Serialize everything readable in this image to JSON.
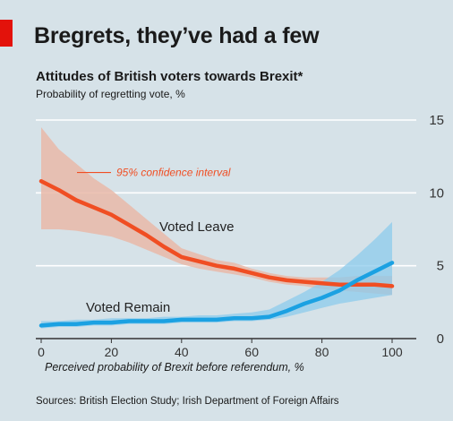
{
  "header": {
    "title": "Bregrets, they’ve had a few",
    "subtitle": "Attitudes of British voters towards Brexit*",
    "unit_label": "Probability of regretting vote, %"
  },
  "footer": {
    "source": "Sources: British Election Study; Irish Department of Foreign Affairs"
  },
  "colors": {
    "background": "#d6e2e8",
    "leave": "#f04e23",
    "leave_band": "#e9b8a8",
    "remain": "#1ba1e2",
    "remain_band": "#8ccbec",
    "tag": "#e3120b"
  },
  "chart_data": {
    "type": "line",
    "xlabel": "Perceived probability of Brexit before referendum, %",
    "ylabel": "",
    "xlim": [
      0,
      100
    ],
    "ylim": [
      0,
      15
    ],
    "x_ticks": [
      0,
      20,
      40,
      60,
      80,
      100
    ],
    "y_ticks": [
      0,
      5,
      10,
      15
    ],
    "y_axis_side": "right",
    "grid": true,
    "annotation": "95% confidence interval",
    "series": [
      {
        "name": "Voted Leave",
        "x": [
          0,
          5,
          10,
          15,
          20,
          25,
          30,
          35,
          40,
          45,
          50,
          55,
          60,
          65,
          70,
          75,
          80,
          85,
          90,
          95,
          100
        ],
        "values": [
          10.8,
          10.2,
          9.5,
          9.0,
          8.5,
          7.8,
          7.1,
          6.3,
          5.6,
          5.3,
          5.0,
          4.8,
          4.5,
          4.2,
          4.0,
          3.9,
          3.8,
          3.7,
          3.7,
          3.7,
          3.6
        ],
        "lower": [
          7.5,
          7.5,
          7.4,
          7.2,
          7.0,
          6.6,
          6.1,
          5.6,
          5.1,
          4.8,
          4.6,
          4.4,
          4.2,
          3.9,
          3.7,
          3.6,
          3.4,
          3.3,
          3.2,
          3.1,
          3.0
        ],
        "upper": [
          14.5,
          13.0,
          12.0,
          11.0,
          10.2,
          9.2,
          8.2,
          7.2,
          6.2,
          5.8,
          5.4,
          5.2,
          4.8,
          4.5,
          4.3,
          4.2,
          4.2,
          4.2,
          4.3,
          4.3,
          4.3
        ]
      },
      {
        "name": "Voted Remain",
        "x": [
          0,
          5,
          10,
          15,
          20,
          25,
          30,
          35,
          40,
          45,
          50,
          55,
          60,
          65,
          70,
          75,
          80,
          85,
          90,
          95,
          100
        ],
        "values": [
          0.9,
          1.0,
          1.0,
          1.1,
          1.1,
          1.2,
          1.2,
          1.2,
          1.3,
          1.3,
          1.3,
          1.4,
          1.4,
          1.5,
          1.9,
          2.4,
          2.8,
          3.3,
          4.0,
          4.6,
          5.2
        ],
        "lower": [
          0.7,
          0.8,
          0.8,
          0.9,
          0.9,
          1.0,
          1.0,
          1.0,
          1.1,
          1.1,
          1.1,
          1.2,
          1.2,
          1.3,
          1.5,
          1.8,
          2.1,
          2.4,
          2.6,
          2.8,
          3.0
        ],
        "upper": [
          1.2,
          1.2,
          1.3,
          1.3,
          1.4,
          1.4,
          1.4,
          1.5,
          1.5,
          1.6,
          1.6,
          1.7,
          1.8,
          2.0,
          2.6,
          3.2,
          3.9,
          4.7,
          5.7,
          6.8,
          8.0
        ]
      }
    ]
  }
}
